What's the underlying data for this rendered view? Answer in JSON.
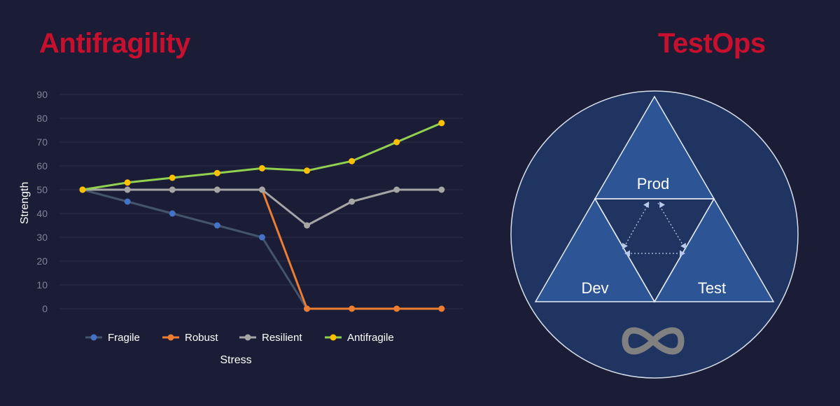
{
  "header": {
    "left_title": "Antifragility",
    "right_title": "TestOps",
    "title_color": "#c8102e"
  },
  "chart_data": {
    "type": "line",
    "title": "",
    "xlabel": "Stress",
    "ylabel": "Strength",
    "ylim": [
      0,
      90
    ],
    "yticks": [
      0,
      10,
      20,
      30,
      40,
      50,
      60,
      70,
      80,
      90
    ],
    "x": [
      1,
      2,
      3,
      4,
      5,
      6,
      7,
      8,
      9
    ],
    "grid": true,
    "legend_position": "bottom",
    "series": [
      {
        "name": "Fragile",
        "color": "#4472c4",
        "line_color": "#44546a",
        "values": [
          50,
          45,
          40,
          35,
          30,
          0,
          null,
          null,
          null
        ]
      },
      {
        "name": "Robust",
        "color": "#ed7d31",
        "line_color": "#ed7d31",
        "values": [
          50,
          50,
          50,
          50,
          50,
          0,
          0,
          0,
          0
        ]
      },
      {
        "name": "Resilient",
        "color": "#a5a5a5",
        "line_color": "#a5a5a5",
        "values": [
          50,
          50,
          50,
          50,
          50,
          35,
          45,
          50,
          50
        ]
      },
      {
        "name": "Antifragile",
        "color": "#ffc000",
        "line_color": "#92d050",
        "values": [
          50,
          53,
          55,
          57,
          59,
          58,
          62,
          70,
          78
        ]
      }
    ]
  },
  "diagram": {
    "labels": {
      "top": "Prod",
      "left": "Dev",
      "right": "Test"
    },
    "icon": "infinity-icon",
    "colors": {
      "circle": "#1f3461",
      "triangle": "#2d5596",
      "arrows": "#b8c9ea",
      "infinity": "#808080"
    }
  }
}
